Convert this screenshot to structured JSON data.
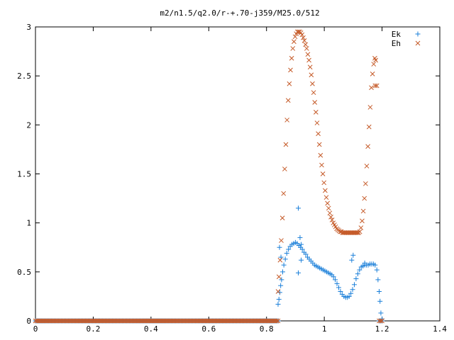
{
  "chart_data": {
    "type": "scatter",
    "title": "m2/n1.5/q2.0/r-+.70-j359/M25.0/512",
    "xlabel": "",
    "ylabel": "",
    "xlim": [
      0,
      1.4
    ],
    "ylim": [
      0,
      3
    ],
    "x_ticks": [
      "0",
      "0.2",
      "0.4",
      "0.6",
      "0.8",
      "1",
      "1.2",
      "1.4"
    ],
    "y_ticks": [
      "0",
      "0.5",
      "1",
      "1.5",
      "2",
      "2.5",
      "3"
    ],
    "grid": false,
    "legend_position": "top-right",
    "series": [
      {
        "name": "Ek",
        "marker": "plus",
        "color": "#1a7fd9",
        "points": [
          [
            0.84,
            0.17
          ],
          [
            0.843,
            0.22
          ],
          [
            0.846,
            0.29
          ],
          [
            0.849,
            0.36
          ],
          [
            0.852,
            0.42
          ],
          [
            0.856,
            0.5
          ],
          [
            0.86,
            0.57
          ],
          [
            0.865,
            0.63
          ],
          [
            0.87,
            0.69
          ],
          [
            0.876,
            0.73
          ],
          [
            0.882,
            0.76
          ],
          [
            0.888,
            0.78
          ],
          [
            0.894,
            0.79
          ],
          [
            0.9,
            0.8
          ],
          [
            0.906,
            0.79
          ],
          [
            0.912,
            0.77
          ],
          [
            0.918,
            0.75
          ],
          [
            0.924,
            0.73
          ],
          [
            0.93,
            0.7
          ],
          [
            0.936,
            0.68
          ],
          [
            0.942,
            0.65
          ],
          [
            0.948,
            0.63
          ],
          [
            0.954,
            0.61
          ],
          [
            0.96,
            0.59
          ],
          [
            0.966,
            0.57
          ],
          [
            0.972,
            0.56
          ],
          [
            0.978,
            0.55
          ],
          [
            0.984,
            0.54
          ],
          [
            0.99,
            0.53
          ],
          [
            0.996,
            0.52
          ],
          [
            1.002,
            0.51
          ],
          [
            1.008,
            0.5
          ],
          [
            1.014,
            0.49
          ],
          [
            1.02,
            0.48
          ],
          [
            1.026,
            0.47
          ],
          [
            1.032,
            0.45
          ],
          [
            1.038,
            0.42
          ],
          [
            1.044,
            0.38
          ],
          [
            1.05,
            0.34
          ],
          [
            1.056,
            0.3
          ],
          [
            1.062,
            0.27
          ],
          [
            1.068,
            0.25
          ],
          [
            1.074,
            0.24
          ],
          [
            1.08,
            0.24
          ],
          [
            1.086,
            0.25
          ],
          [
            1.092,
            0.28
          ],
          [
            1.098,
            0.32
          ],
          [
            1.104,
            0.37
          ],
          [
            1.11,
            0.43
          ],
          [
            1.116,
            0.48
          ],
          [
            1.122,
            0.52
          ],
          [
            1.128,
            0.55
          ],
          [
            1.134,
            0.56
          ],
          [
            1.14,
            0.57
          ],
          [
            1.146,
            0.57
          ],
          [
            1.152,
            0.57
          ],
          [
            1.158,
            0.58
          ],
          [
            1.164,
            0.58
          ],
          [
            1.17,
            0.58
          ],
          [
            1.176,
            0.57
          ],
          [
            1.182,
            0.52
          ],
          [
            1.186,
            0.42
          ],
          [
            1.19,
            0.3
          ],
          [
            1.193,
            0.2
          ],
          [
            1.196,
            0.08
          ],
          [
            1.2,
            0.02
          ],
          [
            0.845,
            0.75
          ],
          [
            0.85,
            0.65
          ],
          [
            0.91,
            1.15
          ],
          [
            0.916,
            0.85
          ],
          [
            0.92,
            0.78
          ],
          [
            0.92,
            0.62
          ],
          [
            0.91,
            0.49
          ],
          [
            1.1,
            0.67
          ],
          [
            1.095,
            0.62
          ],
          [
            1.14,
            0.59
          ]
        ]
      },
      {
        "name": "Eh",
        "marker": "cross",
        "color": "#c55a28",
        "points": [
          [
            0.84,
            0.3
          ],
          [
            0.843,
            0.45
          ],
          [
            0.847,
            0.62
          ],
          [
            0.851,
            0.82
          ],
          [
            0.855,
            1.05
          ],
          [
            0.859,
            1.3
          ],
          [
            0.863,
            1.55
          ],
          [
            0.867,
            1.8
          ],
          [
            0.871,
            2.05
          ],
          [
            0.875,
            2.25
          ],
          [
            0.879,
            2.42
          ],
          [
            0.883,
            2.56
          ],
          [
            0.887,
            2.68
          ],
          [
            0.891,
            2.78
          ],
          [
            0.895,
            2.85
          ],
          [
            0.899,
            2.9
          ],
          [
            0.903,
            2.93
          ],
          [
            0.907,
            2.95
          ],
          [
            0.911,
            2.95
          ],
          [
            0.915,
            2.95
          ],
          [
            0.919,
            2.94
          ],
          [
            0.923,
            2.92
          ],
          [
            0.927,
            2.89
          ],
          [
            0.931,
            2.86
          ],
          [
            0.935,
            2.82
          ],
          [
            0.939,
            2.78
          ],
          [
            0.943,
            2.72
          ],
          [
            0.947,
            2.66
          ],
          [
            0.951,
            2.59
          ],
          [
            0.955,
            2.51
          ],
          [
            0.959,
            2.42
          ],
          [
            0.963,
            2.33
          ],
          [
            0.967,
            2.23
          ],
          [
            0.971,
            2.13
          ],
          [
            0.975,
            2.02
          ],
          [
            0.979,
            1.91
          ],
          [
            0.983,
            1.8
          ],
          [
            0.987,
            1.69
          ],
          [
            0.991,
            1.59
          ],
          [
            0.995,
            1.5
          ],
          [
            0.999,
            1.41
          ],
          [
            1.003,
            1.33
          ],
          [
            1.007,
            1.26
          ],
          [
            1.011,
            1.2
          ],
          [
            1.015,
            1.15
          ],
          [
            1.019,
            1.1
          ],
          [
            1.023,
            1.06
          ],
          [
            1.027,
            1.03
          ],
          [
            1.031,
            1.0
          ],
          [
            1.035,
            0.98
          ],
          [
            1.039,
            0.96
          ],
          [
            1.043,
            0.94
          ],
          [
            1.047,
            0.93
          ],
          [
            1.051,
            0.92
          ],
          [
            1.055,
            0.91
          ],
          [
            1.059,
            0.91
          ],
          [
            1.063,
            0.9
          ],
          [
            1.067,
            0.9
          ],
          [
            1.071,
            0.9
          ],
          [
            1.075,
            0.9
          ],
          [
            1.079,
            0.9
          ],
          [
            1.083,
            0.9
          ],
          [
            1.087,
            0.9
          ],
          [
            1.091,
            0.9
          ],
          [
            1.095,
            0.9
          ],
          [
            1.099,
            0.9
          ],
          [
            1.103,
            0.9
          ],
          [
            1.107,
            0.9
          ],
          [
            1.111,
            0.9
          ],
          [
            1.115,
            0.9
          ],
          [
            1.119,
            0.9
          ],
          [
            1.123,
            0.91
          ],
          [
            1.127,
            0.95
          ],
          [
            1.131,
            1.02
          ],
          [
            1.135,
            1.12
          ],
          [
            1.139,
            1.25
          ],
          [
            1.143,
            1.4
          ],
          [
            1.147,
            1.58
          ],
          [
            1.151,
            1.78
          ],
          [
            1.155,
            1.98
          ],
          [
            1.159,
            2.18
          ],
          [
            1.163,
            2.38
          ],
          [
            1.167,
            2.52
          ],
          [
            1.171,
            2.62
          ],
          [
            1.175,
            2.68
          ],
          [
            1.178,
            2.66
          ],
          [
            1.182,
            2.4
          ],
          [
            1.176,
            2.4
          ]
        ]
      }
    ],
    "flat_segment": {
      "x_start": 0.0,
      "x_end": 0.84,
      "y": 0,
      "x_start_tail": 1.19,
      "x_end_tail": 1.2
    }
  }
}
